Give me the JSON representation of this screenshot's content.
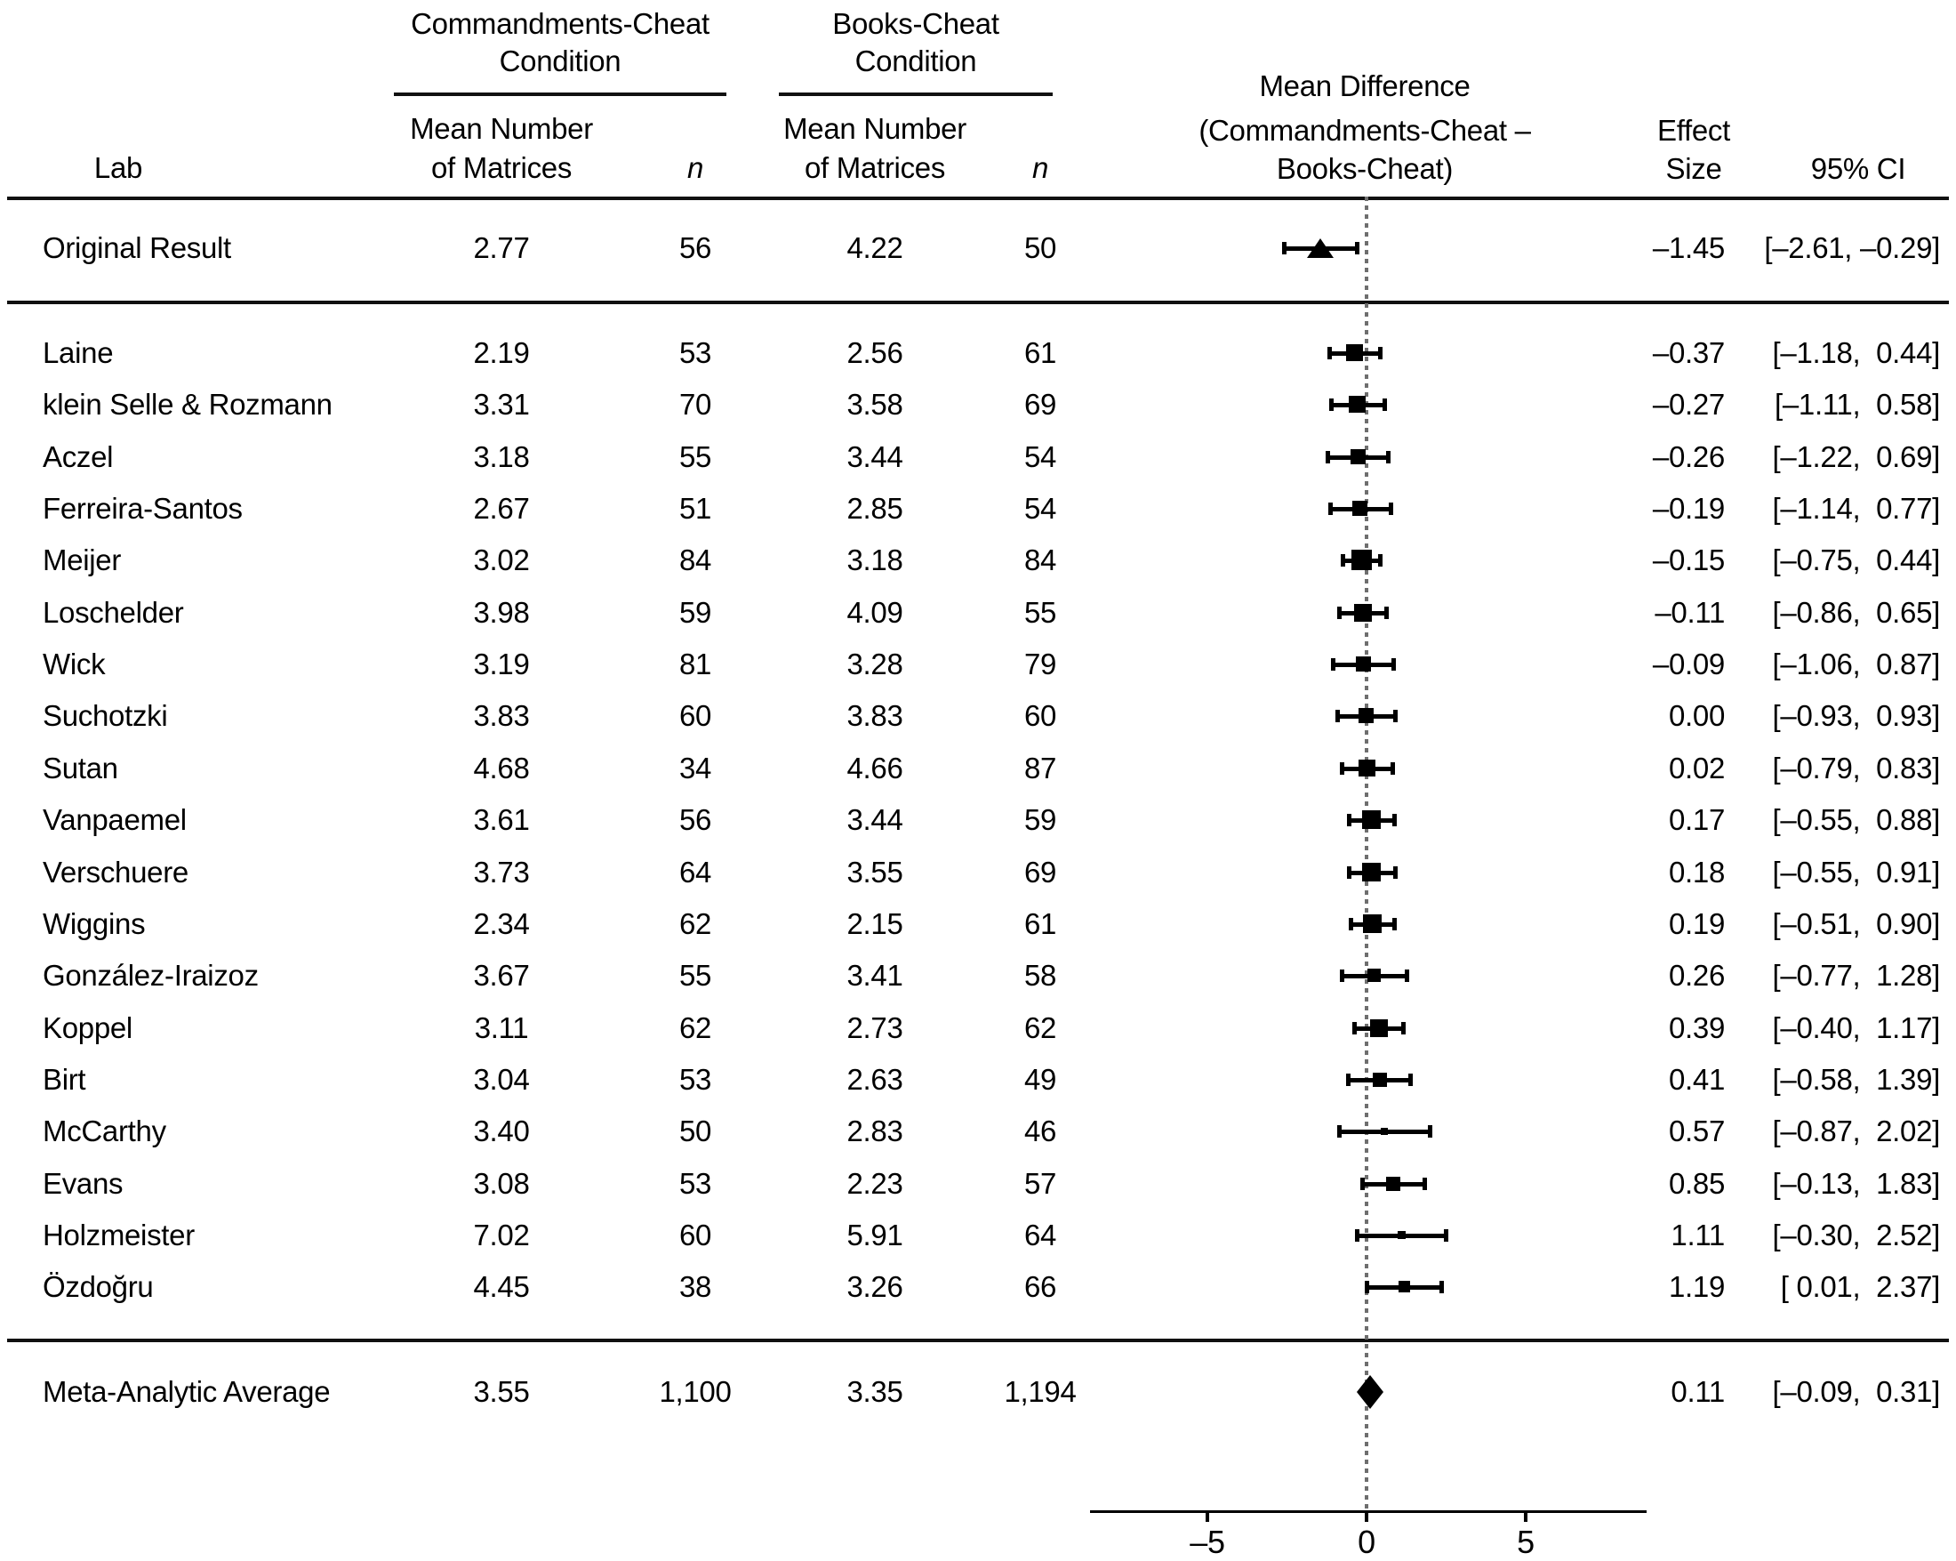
{
  "figure_type": "forest-plot",
  "colors": {
    "marker": "#000000",
    "rule": "#111111",
    "zero_line": "#6e6e6e",
    "background": "#ffffff"
  },
  "header": {
    "lab": "Lab",
    "group1_line1": "Commandments-Cheat",
    "group1_line2": "Condition",
    "group2_line1": "Books-Cheat",
    "group2_line2": "Condition",
    "mean_line1": "Mean Number",
    "mean_line2": "of Matrices",
    "n_label": "n",
    "diff_line1": "Mean Difference",
    "diff_line2": "(Commandments-Cheat –",
    "diff_line3": "Books-Cheat)",
    "effect_line1": "Effect",
    "effect_line2": "Size",
    "ci_label": "95% CI"
  },
  "chart_data": {
    "type": "forest",
    "title": "Mean Difference (Commandments-Cheat – Books-Cheat)",
    "x_axis": {
      "tick_labels": [
        "–5",
        "0",
        "5"
      ],
      "tick_values": [
        -5,
        0,
        5
      ],
      "xlim": [
        -8.7,
        8.8
      ],
      "zero_reference_line": true
    },
    "rows": [
      {
        "section": "original",
        "marker": "triangle",
        "lab": "Original Result",
        "mean_commandments": "2.77",
        "n_commandments": "56",
        "mean_books": "4.22",
        "n_books": "50",
        "effect_size": "–1.45",
        "ci": "[–2.61, –0.29]",
        "est": -1.45,
        "lo": -2.61,
        "hi": -0.29
      },
      {
        "section": "lab",
        "marker": "square",
        "lab": "Laine",
        "mean_commandments": "2.19",
        "n_commandments": "53",
        "mean_books": "2.56",
        "n_books": "61",
        "effect_size": "–0.37",
        "ci": "[–1.18,  0.44]",
        "est": -0.37,
        "lo": -1.18,
        "hi": 0.44
      },
      {
        "section": "lab",
        "marker": "square",
        "lab": "klein Selle & Rozmann",
        "mean_commandments": "3.31",
        "n_commandments": "70",
        "mean_books": "3.58",
        "n_books": "69",
        "effect_size": "–0.27",
        "ci": "[–1.11,  0.58]",
        "est": -0.27,
        "lo": -1.11,
        "hi": 0.58
      },
      {
        "section": "lab",
        "marker": "square",
        "lab": "Aczel",
        "mean_commandments": "3.18",
        "n_commandments": "55",
        "mean_books": "3.44",
        "n_books": "54",
        "effect_size": "–0.26",
        "ci": "[–1.22,  0.69]",
        "est": -0.26,
        "lo": -1.22,
        "hi": 0.69
      },
      {
        "section": "lab",
        "marker": "square",
        "lab": "Ferreira-Santos",
        "mean_commandments": "2.67",
        "n_commandments": "51",
        "mean_books": "2.85",
        "n_books": "54",
        "effect_size": "–0.19",
        "ci": "[–1.14,  0.77]",
        "est": -0.19,
        "lo": -1.14,
        "hi": 0.77
      },
      {
        "section": "lab",
        "marker": "square",
        "lab": "Meijer",
        "mean_commandments": "3.02",
        "n_commandments": "84",
        "mean_books": "3.18",
        "n_books": "84",
        "effect_size": "–0.15",
        "ci": "[–0.75,  0.44]",
        "est": -0.15,
        "lo": -0.75,
        "hi": 0.44
      },
      {
        "section": "lab",
        "marker": "square",
        "lab": "Loschelder",
        "mean_commandments": "3.98",
        "n_commandments": "59",
        "mean_books": "4.09",
        "n_books": "55",
        "effect_size": "–0.11",
        "ci": "[–0.86,  0.65]",
        "est": -0.11,
        "lo": -0.86,
        "hi": 0.65
      },
      {
        "section": "lab",
        "marker": "square",
        "lab": "Wick",
        "mean_commandments": "3.19",
        "n_commandments": "81",
        "mean_books": "3.28",
        "n_books": "79",
        "effect_size": "–0.09",
        "ci": "[–1.06,  0.87]",
        "est": -0.09,
        "lo": -1.06,
        "hi": 0.87
      },
      {
        "section": "lab",
        "marker": "square",
        "lab": "Suchotzki",
        "mean_commandments": "3.83",
        "n_commandments": "60",
        "mean_books": "3.83",
        "n_books": "60",
        "effect_size": "0.00",
        "ci": "[–0.93,  0.93]",
        "est": 0.0,
        "lo": -0.93,
        "hi": 0.93
      },
      {
        "section": "lab",
        "marker": "square",
        "lab": "Sutan",
        "mean_commandments": "4.68",
        "n_commandments": "34",
        "mean_books": "4.66",
        "n_books": "87",
        "effect_size": "0.02",
        "ci": "[–0.79,  0.83]",
        "est": 0.02,
        "lo": -0.79,
        "hi": 0.83
      },
      {
        "section": "lab",
        "marker": "square",
        "lab": "Vanpaemel",
        "mean_commandments": "3.61",
        "n_commandments": "56",
        "mean_books": "3.44",
        "n_books": "59",
        "effect_size": "0.17",
        "ci": "[–0.55,  0.88]",
        "est": 0.17,
        "lo": -0.55,
        "hi": 0.88
      },
      {
        "section": "lab",
        "marker": "square",
        "lab": "Verschuere",
        "mean_commandments": "3.73",
        "n_commandments": "64",
        "mean_books": "3.55",
        "n_books": "69",
        "effect_size": "0.18",
        "ci": "[–0.55,  0.91]",
        "est": 0.18,
        "lo": -0.55,
        "hi": 0.91
      },
      {
        "section": "lab",
        "marker": "square",
        "lab": "Wiggins",
        "mean_commandments": "2.34",
        "n_commandments": "62",
        "mean_books": "2.15",
        "n_books": "61",
        "effect_size": "0.19",
        "ci": "[–0.51,  0.90]",
        "est": 0.19,
        "lo": -0.51,
        "hi": 0.9
      },
      {
        "section": "lab",
        "marker": "square",
        "lab": "González-Iraizoz",
        "mean_commandments": "3.67",
        "n_commandments": "55",
        "mean_books": "3.41",
        "n_books": "58",
        "effect_size": "0.26",
        "ci": "[–0.77,  1.28]",
        "est": 0.26,
        "lo": -0.77,
        "hi": 1.28
      },
      {
        "section": "lab",
        "marker": "square",
        "lab": "Koppel",
        "mean_commandments": "3.11",
        "n_commandments": "62",
        "mean_books": "2.73",
        "n_books": "62",
        "effect_size": "0.39",
        "ci": "[–0.40,  1.17]",
        "est": 0.39,
        "lo": -0.4,
        "hi": 1.17
      },
      {
        "section": "lab",
        "marker": "square",
        "lab": "Birt",
        "mean_commandments": "3.04",
        "n_commandments": "53",
        "mean_books": "2.63",
        "n_books": "49",
        "effect_size": "0.41",
        "ci": "[–0.58,  1.39]",
        "est": 0.41,
        "lo": -0.58,
        "hi": 1.39
      },
      {
        "section": "lab",
        "marker": "square",
        "lab": "McCarthy",
        "mean_commandments": "3.40",
        "n_commandments": "50",
        "mean_books": "2.83",
        "n_books": "46",
        "effect_size": "0.57",
        "ci": "[–0.87,  2.02]",
        "est": 0.57,
        "lo": -0.87,
        "hi": 2.02
      },
      {
        "section": "lab",
        "marker": "square",
        "lab": "Evans",
        "mean_commandments": "3.08",
        "n_commandments": "53",
        "mean_books": "2.23",
        "n_books": "57",
        "effect_size": "0.85",
        "ci": "[–0.13,  1.83]",
        "est": 0.85,
        "lo": -0.13,
        "hi": 1.83
      },
      {
        "section": "lab",
        "marker": "square",
        "lab": "Holzmeister",
        "mean_commandments": "7.02",
        "n_commandments": "60",
        "mean_books": "5.91",
        "n_books": "64",
        "effect_size": "1.11",
        "ci": "[–0.30,  2.52]",
        "est": 1.11,
        "lo": -0.3,
        "hi": 2.52
      },
      {
        "section": "lab",
        "marker": "square",
        "lab": "Özdoğru",
        "mean_commandments": "4.45",
        "n_commandments": "38",
        "mean_books": "3.26",
        "n_books": "66",
        "effect_size": "1.19",
        "ci": "[ 0.01,  2.37]",
        "est": 1.19,
        "lo": 0.01,
        "hi": 2.37
      },
      {
        "section": "meta",
        "marker": "diamond",
        "lab": "Meta-Analytic Average",
        "mean_commandments": "3.55",
        "n_commandments": "1,100",
        "mean_books": "3.35",
        "n_books": "1,194",
        "effect_size": "0.11",
        "ci": "[–0.09,  0.31]",
        "est": 0.11,
        "lo": -0.09,
        "hi": 0.31
      }
    ]
  }
}
